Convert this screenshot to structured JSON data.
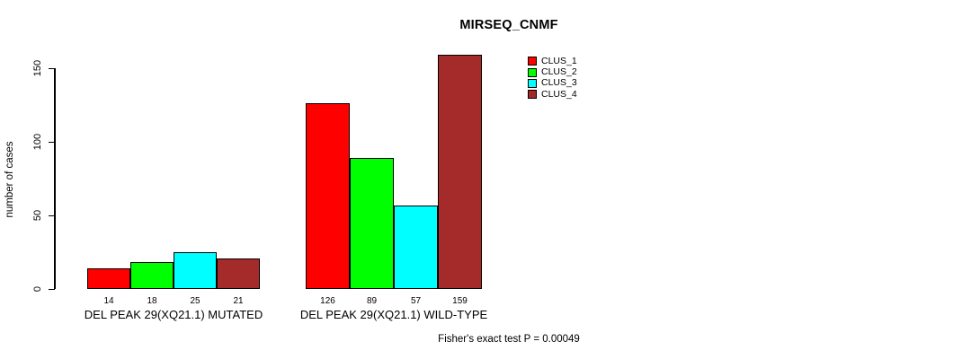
{
  "chart_data": {
    "type": "bar",
    "title": "MIRSEQ_CNMF",
    "ylabel": "number of cases",
    "xlabel": "",
    "ylim": [
      0,
      150
    ],
    "yticks": [
      0,
      50,
      100,
      150
    ],
    "grid": false,
    "background": "#ffffff",
    "legend_position": "top-right",
    "categories": [
      "DEL PEAK 29(XQ21.1) MUTATED",
      "DEL PEAK 29(XQ21.1) WILD-TYPE"
    ],
    "series": [
      {
        "name": "CLUS_1",
        "color": "#ff0000",
        "values": [
          14,
          126
        ]
      },
      {
        "name": "CLUS_2",
        "color": "#00ff00",
        "values": [
          18,
          89
        ]
      },
      {
        "name": "CLUS_3",
        "color": "#00ffff",
        "values": [
          25,
          57
        ]
      },
      {
        "name": "CLUS_4",
        "color": "#a52a2a",
        "values": [
          21,
          159
        ]
      }
    ],
    "bar_value_labels": [
      [
        14,
        18,
        25,
        21
      ],
      [
        126,
        89,
        57,
        159
      ]
    ],
    "annotation": "Fisher's exact test P = 0.00049"
  }
}
